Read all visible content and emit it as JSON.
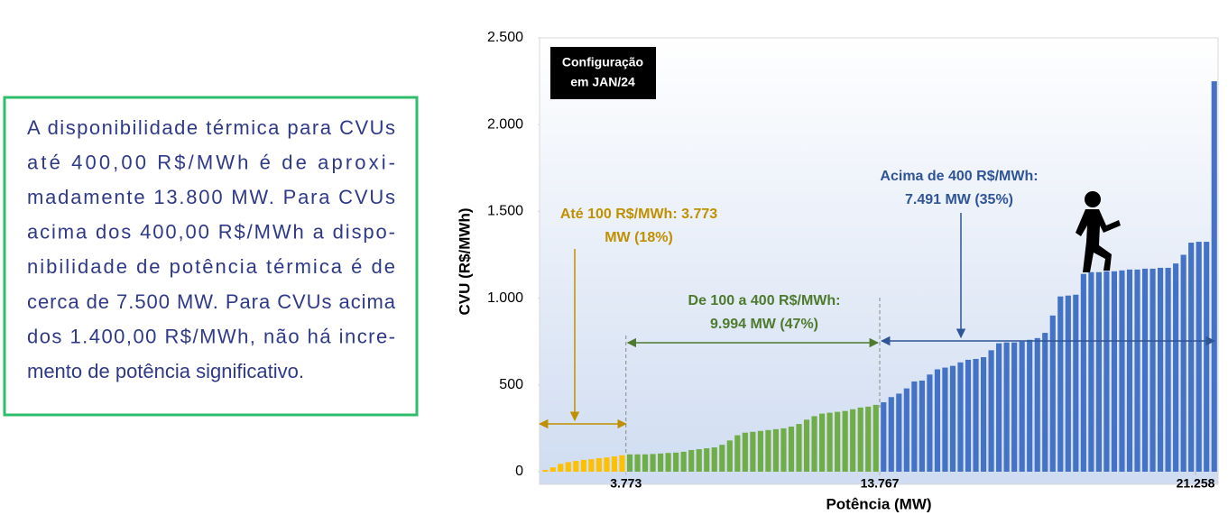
{
  "text_box": {
    "lines": [
      "A disponibilidade térmica para CVUs",
      "até 400,00 R$/MWh é de aproxi-",
      "madamente 13.800 MW. Para CVUs",
      "acima dos 400,00 R$/MWh a dispo-",
      "nibilidade de potência térmica é de",
      "cerca de 7.500 MW. Para CVUs acima",
      "dos 1.400,00 R$/MWh, não há incre-",
      "mento de potência significativo."
    ]
  },
  "chart_data": {
    "type": "bar",
    "badge": [
      "Configuração",
      "em JAN/24"
    ],
    "xlabel": "Potência (MW)",
    "ylabel": "CVU (R$/MWh)",
    "ylim": [
      0,
      2500
    ],
    "yticks": [
      0,
      500,
      {
        "value": 1000,
        "label": "1.000"
      },
      {
        "value": 1500,
        "label": "1.500"
      },
      {
        "value": 2000,
        "label": "2.000"
      },
      {
        "value": 2500,
        "label": "2.500"
      }
    ],
    "xticks": [
      {
        "value": 3773,
        "label": "3.773"
      },
      {
        "value": 13767,
        "label": "13.767"
      },
      {
        "value": 21258,
        "label": "21.258"
      }
    ],
    "series": [
      {
        "color": "#ffc000",
        "values": [
          10,
          25,
          45,
          55,
          62,
          68,
          72,
          78,
          82,
          88,
          95
        ]
      },
      {
        "color": "#70ad47",
        "values": [
          100,
          100,
          100,
          102,
          105,
          108,
          110,
          115,
          125,
          130,
          135,
          140,
          155,
          180,
          210,
          225,
          230,
          235,
          240,
          245,
          250,
          260,
          275,
          300,
          320,
          335,
          340,
          345,
          350,
          360,
          370,
          375,
          385
        ]
      },
      {
        "color": "#4472c4",
        "values": [
          400,
          430,
          450,
          480,
          520,
          525,
          560,
          590,
          600,
          610,
          630,
          645,
          650,
          660,
          700,
          740,
          745,
          745,
          750,
          760,
          770,
          800,
          900,
          1010,
          1015,
          1020,
          1140,
          1150,
          1150,
          1155,
          1155,
          1160,
          1165,
          1165,
          1170,
          1170,
          1175,
          1175,
          1200,
          1250,
          1320,
          1325,
          1325,
          2250
        ]
      }
    ],
    "annotations": [
      {
        "lines": [
          "Até 100 R$/MWh: 3.773",
          "MW (18%)"
        ],
        "color": "#bf9000"
      },
      {
        "lines": [
          "De 100 a 400 R$/MWh:",
          "9.994 MW (47%)"
        ],
        "color": "#4e7a2e"
      },
      {
        "lines": [
          "Acima de 400 R$/MWh:",
          "7.491 MW (35%)"
        ],
        "color": "#2f5597"
      }
    ]
  }
}
